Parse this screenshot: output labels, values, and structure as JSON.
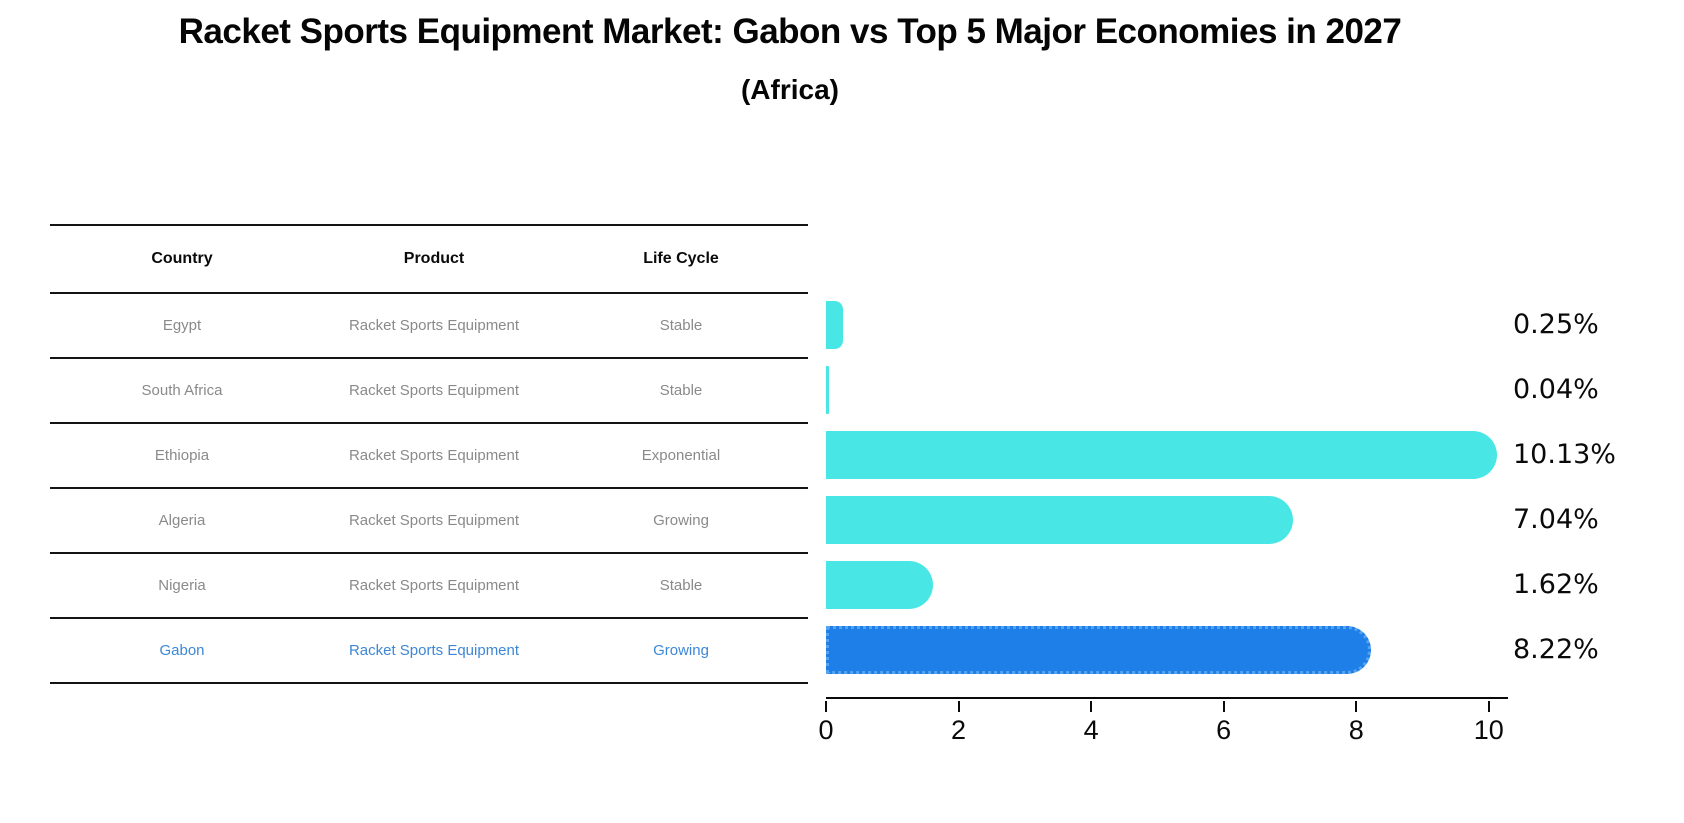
{
  "title": "Racket Sports Equipment Market: Gabon vs Top 5 Major Economies in 2027",
  "subtitle": "(Africa)",
  "table": {
    "headers": [
      "Country",
      "Product",
      "Life Cycle"
    ],
    "rows": [
      {
        "country": "Egypt",
        "product": "Racket Sports Equipment",
        "life_cycle": "Stable",
        "highlight": false
      },
      {
        "country": "South Africa",
        "product": "Racket Sports Equipment",
        "life_cycle": "Stable",
        "highlight": false
      },
      {
        "country": "Ethiopia",
        "product": "Racket Sports Equipment",
        "life_cycle": "Exponential",
        "highlight": false
      },
      {
        "country": "Algeria",
        "product": "Racket Sports Equipment",
        "life_cycle": "Growing",
        "highlight": false
      },
      {
        "country": "Nigeria",
        "product": "Racket Sports Equipment",
        "life_cycle": "Stable",
        "highlight": false
      },
      {
        "country": "Gabon",
        "product": "Racket Sports Equipment",
        "life_cycle": "Growing",
        "highlight": true
      }
    ]
  },
  "chart_data": {
    "type": "bar",
    "orientation": "horizontal",
    "title": "Racket Sports Equipment Market: Gabon vs Top 5 Major Economies in 2027 (Africa)",
    "categories": [
      "Egypt",
      "South Africa",
      "Ethiopia",
      "Algeria",
      "Nigeria",
      "Gabon"
    ],
    "values": [
      0.25,
      0.04,
      10.13,
      7.04,
      1.62,
      8.22
    ],
    "labels": [
      "0.25%",
      "0.04%",
      "10.13%",
      "7.04%",
      "1.62%",
      "8.22%"
    ],
    "x_ticks": [
      0,
      2,
      4,
      6,
      8,
      10
    ],
    "xlim": [
      0,
      10.29
    ],
    "xlabel": "",
    "ylabel": "",
    "grid": false,
    "legend": "none",
    "highlight_index": 5,
    "bar_color": "#48e6e4",
    "highlight_color": "#1e7fe8",
    "highlight_edge_style": "dotted",
    "highlight_text_color": "#3d87d6",
    "row_text_color": "#8a8a8a"
  }
}
